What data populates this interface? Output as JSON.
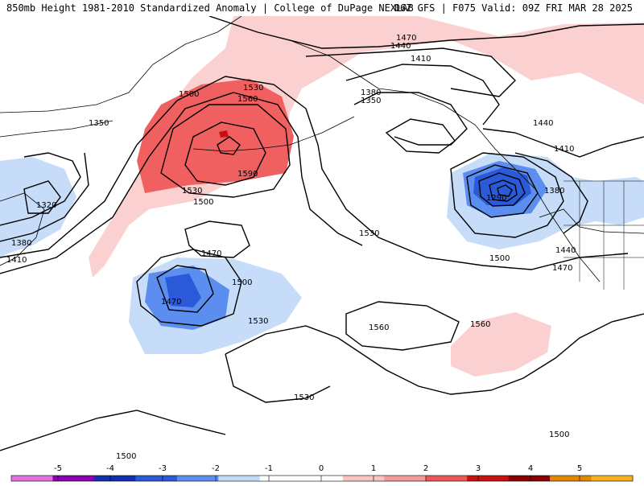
{
  "header": {
    "title_left": "850mb Height 1981-2010 Standardized Anomaly | College of DuPage NEXLAB",
    "title_right": "06Z GFS | F075 Valid: 09Z FRI MAR 28 2025"
  },
  "contour_labels": [
    "1470",
    "1440",
    "1410",
    "1380",
    "1350",
    "1500",
    "1530",
    "1560",
    "1590",
    "1320",
    "1290",
    "1470",
    "1500",
    "1530",
    "1560",
    "1530",
    "1500",
    "1500",
    "1500",
    "1440",
    "1470",
    "1410",
    "1530",
    "1350",
    "1410",
    "1380",
    "1380",
    "1440",
    "1530",
    "1560",
    "1500",
    "1470"
  ],
  "colorbar": {
    "ticks": [
      "-5",
      "-4",
      "-3",
      "-2",
      "-1",
      "0",
      "1",
      "2",
      "3",
      "4",
      "5"
    ],
    "colors": [
      "#e070e0",
      "#8a00b0",
      "#1030b0",
      "#2a5ad8",
      "#5c8ef0",
      "#c2dcf8",
      "#ffffff",
      "#ffffff",
      "#fbc4c4",
      "#f59a9a",
      "#ec5858",
      "#c81010",
      "#8a0000",
      "#e08800",
      "#f8b020"
    ]
  }
}
